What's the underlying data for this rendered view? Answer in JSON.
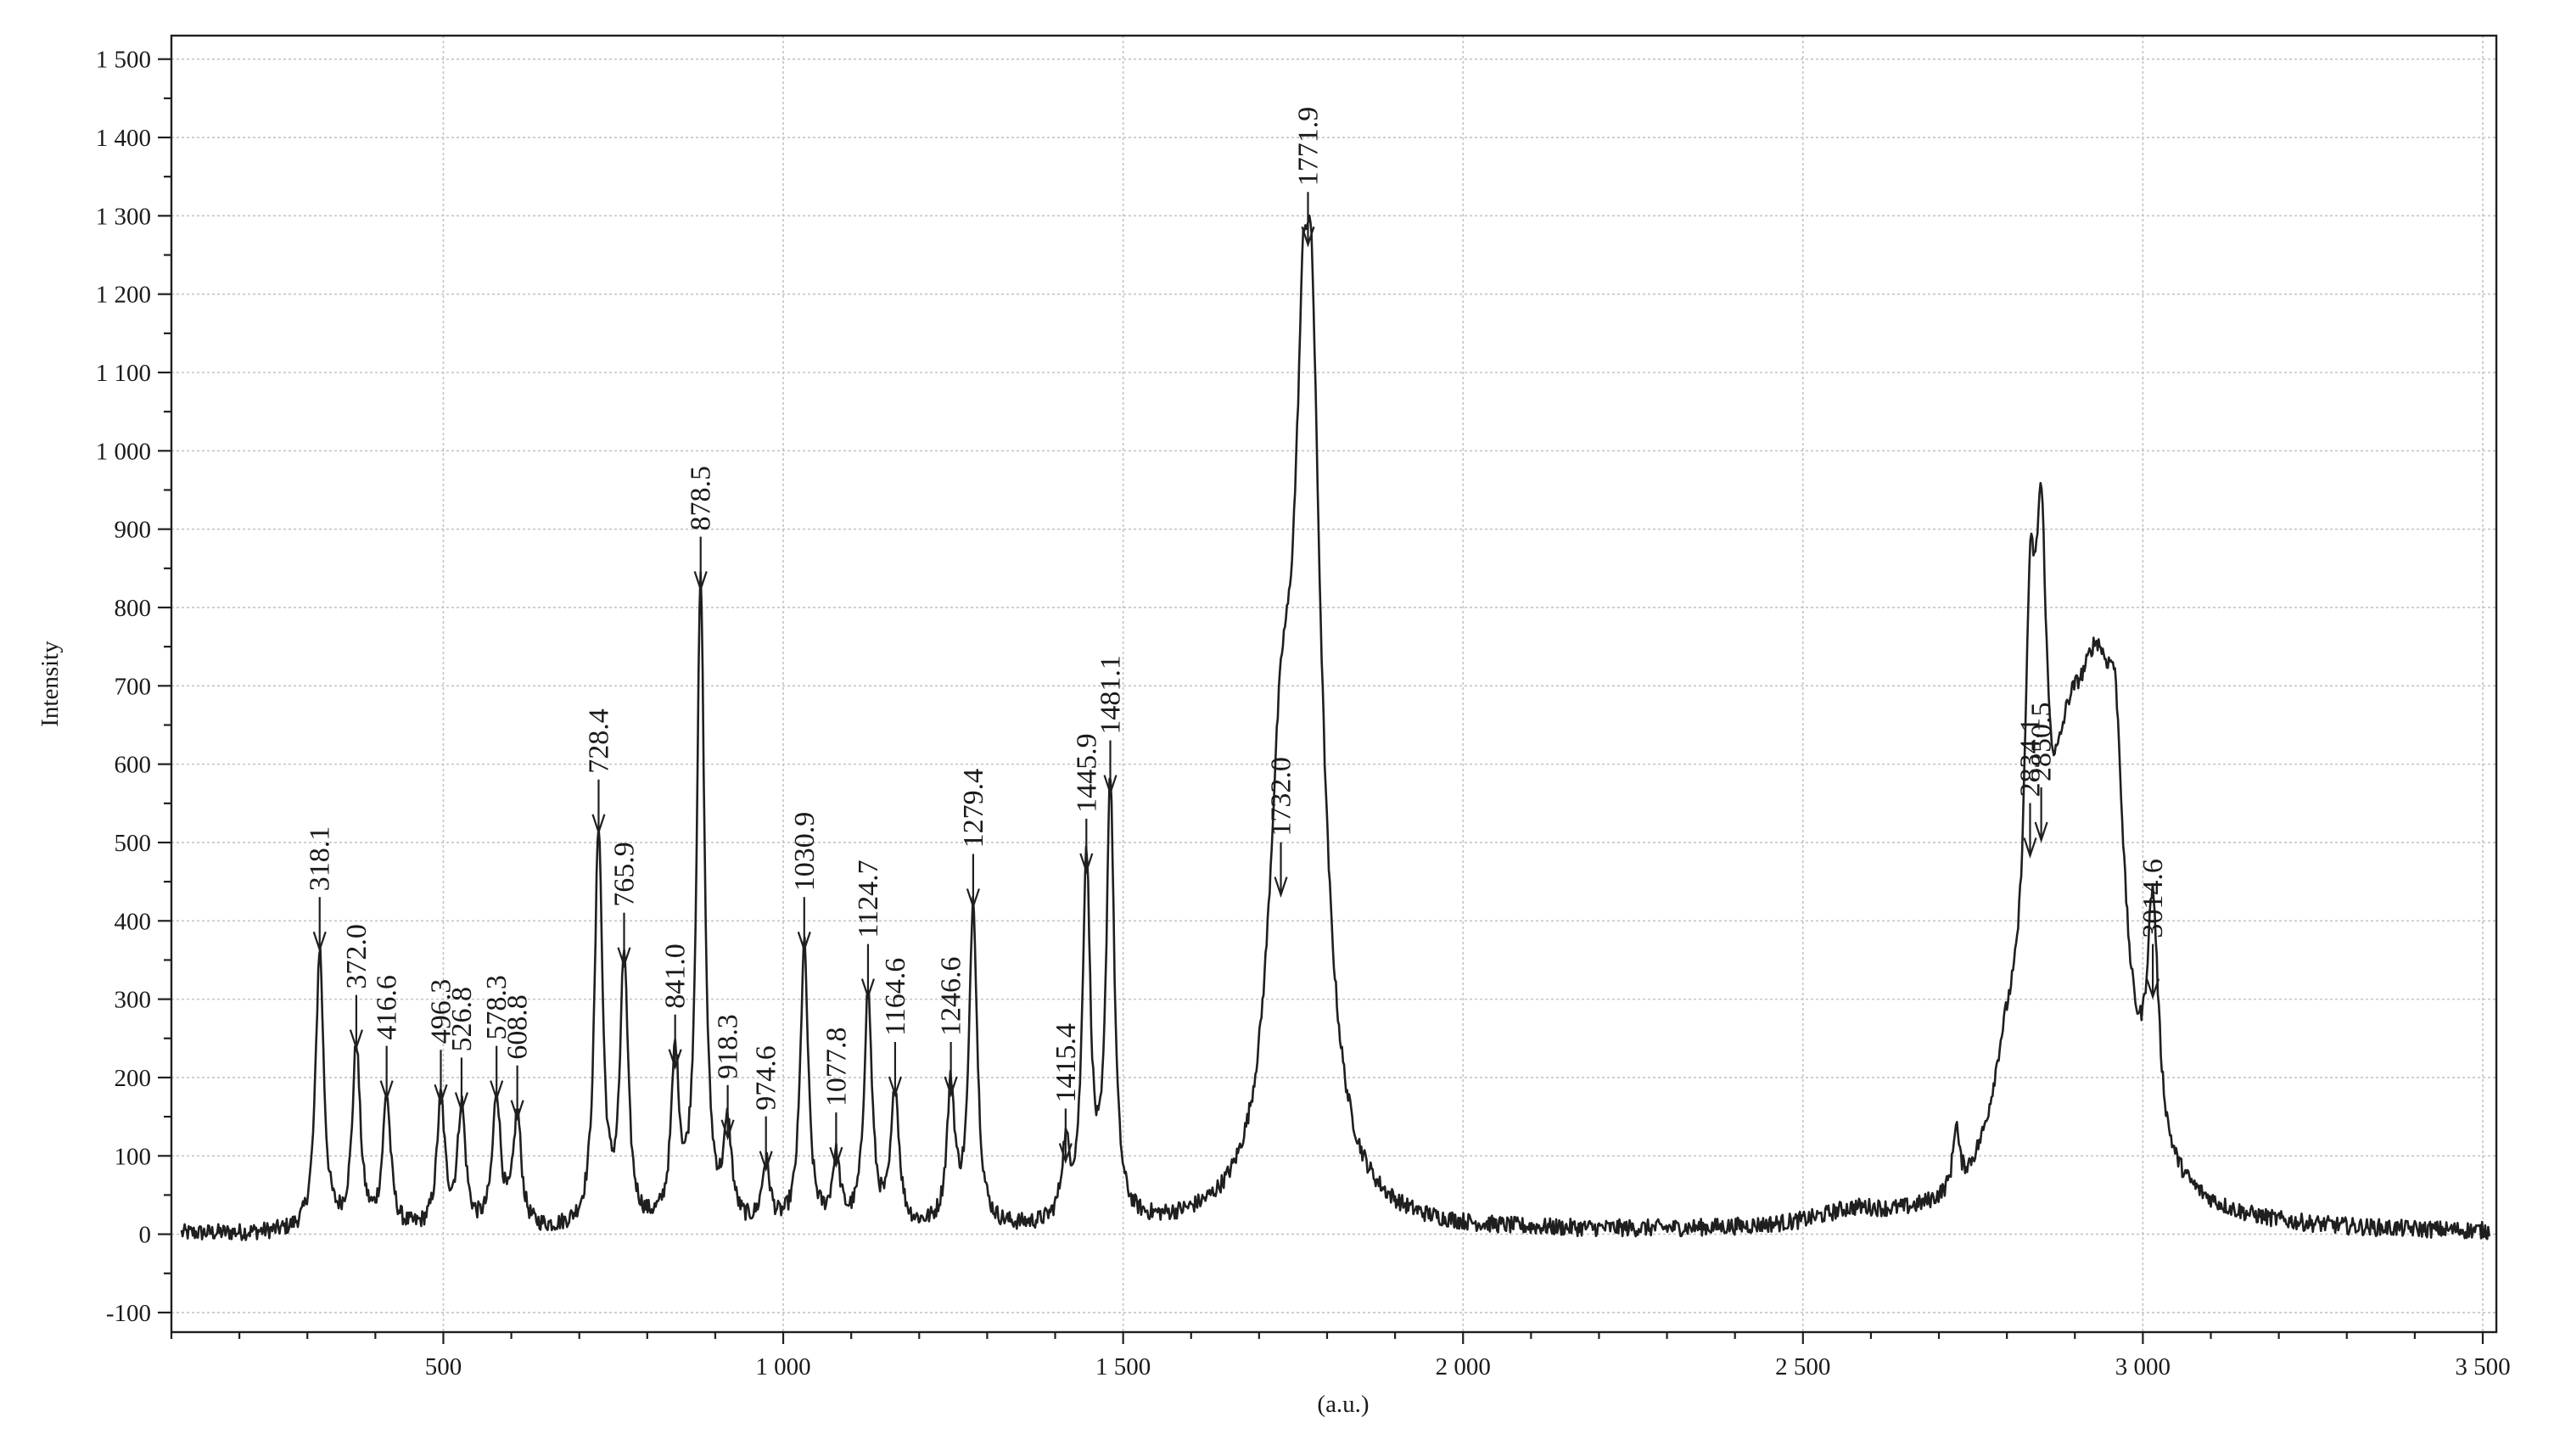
{
  "chart_data": {
    "type": "line",
    "xlabel": "(a.u.)",
    "ylabel": "Intensity",
    "xlim": [
      100,
      3520
    ],
    "ylim": [
      -125,
      1530
    ],
    "x_ticks": [
      {
        "value": 500,
        "label": "500"
      },
      {
        "value": 1000,
        "label": "1 000"
      },
      {
        "value": 1500,
        "label": "1 500"
      },
      {
        "value": 2000,
        "label": "2 000"
      },
      {
        "value": 2500,
        "label": "2 500"
      },
      {
        "value": 3000,
        "label": "3 000"
      },
      {
        "value": 3500,
        "label": "3 500"
      }
    ],
    "x_minor_step": 100,
    "y_ticks": [
      {
        "value": 1500,
        "label": "1 500"
      },
      {
        "value": 1400,
        "label": "1 400"
      },
      {
        "value": 1300,
        "label": "1 300"
      },
      {
        "value": 1200,
        "label": "1 200"
      },
      {
        "value": 1100,
        "label": "1 100"
      },
      {
        "value": 1000,
        "label": "1 000"
      },
      {
        "value": 900,
        "label": "900"
      },
      {
        "value": 800,
        "label": "800"
      },
      {
        "value": 700,
        "label": "700"
      },
      {
        "value": 600,
        "label": "600"
      },
      {
        "value": 500,
        "label": "500"
      },
      {
        "value": 400,
        "label": "400"
      },
      {
        "value": 300,
        "label": "300"
      },
      {
        "value": 200,
        "label": "200"
      },
      {
        "value": 100,
        "label": "100"
      },
      {
        "value": 0,
        "label": "0"
      },
      {
        "value": -100,
        "label": "-100"
      }
    ],
    "y_minor_step": 50,
    "grid": true,
    "peaks": [
      {
        "x": 318.1,
        "y": 360,
        "label": "318.1"
      },
      {
        "x": 372.0,
        "y": 235,
        "label": "372.0"
      },
      {
        "x": 416.6,
        "y": 170,
        "label": "416.6"
      },
      {
        "x": 496.3,
        "y": 165,
        "label": "496.3"
      },
      {
        "x": 526.8,
        "y": 155,
        "label": "526.8"
      },
      {
        "x": 578.3,
        "y": 170,
        "label": "578.3"
      },
      {
        "x": 608.8,
        "y": 145,
        "label": "608.8"
      },
      {
        "x": 728.4,
        "y": 510,
        "label": "728.4"
      },
      {
        "x": 765.9,
        "y": 340,
        "label": "765.9"
      },
      {
        "x": 841.0,
        "y": 210,
        "label": "841.0"
      },
      {
        "x": 878.5,
        "y": 820,
        "label": "878.5"
      },
      {
        "x": 918.3,
        "y": 120,
        "label": "918.3"
      },
      {
        "x": 974.6,
        "y": 80,
        "label": "974.6"
      },
      {
        "x": 1030.9,
        "y": 360,
        "label": "1030.9"
      },
      {
        "x": 1077.8,
        "y": 85,
        "label": "1077.8"
      },
      {
        "x": 1124.7,
        "y": 300,
        "label": "1124.7"
      },
      {
        "x": 1164.6,
        "y": 175,
        "label": "1164.6"
      },
      {
        "x": 1246.6,
        "y": 175,
        "label": "1246.6"
      },
      {
        "x": 1279.4,
        "y": 415,
        "label": "1279.4"
      },
      {
        "x": 1415.4,
        "y": 90,
        "label": "1415.4"
      },
      {
        "x": 1445.9,
        "y": 460,
        "label": "1445.9"
      },
      {
        "x": 1481.1,
        "y": 560,
        "label": "1481.1"
      },
      {
        "x": 1732.0,
        "y": 430,
        "label": "1732.0"
      },
      {
        "x": 1771.9,
        "y": 1260,
        "label": "1771.9"
      },
      {
        "x": 2834.1,
        "y": 480,
        "label": "2834.1"
      },
      {
        "x": 2850.5,
        "y": 500,
        "label": "2850.5"
      },
      {
        "x": 3014.6,
        "y": 300,
        "label": "3014.6"
      }
    ],
    "broad_bands": [
      {
        "x": 2725,
        "y": 80,
        "width": 5
      },
      {
        "x": 2575,
        "y": 18,
        "width": 60
      },
      {
        "x": 2800,
        "y": 130,
        "width": 28
      },
      {
        "x": 2890,
        "y": 430,
        "width": 40
      },
      {
        "x": 2935,
        "y": 480,
        "width": 35
      },
      {
        "x": 2960,
        "y": 260,
        "width": 14
      }
    ]
  }
}
